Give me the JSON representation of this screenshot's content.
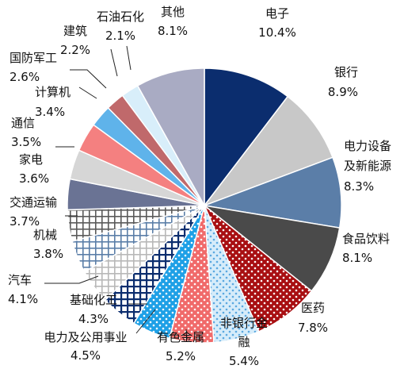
{
  "chart_data": {
    "type": "pie",
    "title": "",
    "unit": "%",
    "start": "12 o'clock",
    "direction": "clockwise",
    "legend": "none (slice labels)",
    "slices": [
      {
        "label": "电子",
        "value": 10.4,
        "value_label": "10.4%",
        "color": "#0b2d6e",
        "pattern": "solid"
      },
      {
        "label": "银行",
        "value": 8.9,
        "value_label": "8.9%",
        "color": "#c8c8c8",
        "pattern": "solid"
      },
      {
        "label": "电力设备及新能源",
        "value": 8.3,
        "value_label": "8.3%",
        "color": "#5b7ea8",
        "pattern": "solid"
      },
      {
        "label": "食品饮料",
        "value": 8.1,
        "value_label": "8.1%",
        "color": "#4a4a4a",
        "pattern": "solid"
      },
      {
        "label": "医药",
        "value": 7.8,
        "value_label": "7.8%",
        "color": "#a80f12",
        "pattern": "dots-white"
      },
      {
        "label": "非银行金融",
        "value": 5.4,
        "value_label": "5.4%",
        "color": "#d6ecfa",
        "pattern": "dots-blue"
      },
      {
        "label": "有色金属",
        "value": 5.2,
        "value_label": "5.2%",
        "color": "#f06a6a",
        "pattern": "dots-white"
      },
      {
        "label": "电力及公用事业",
        "value": 4.5,
        "value_label": "4.5%",
        "color": "#1ea0e6",
        "pattern": "dots-white"
      },
      {
        "label": "基础化工",
        "value": 4.3,
        "value_label": "4.3%",
        "color": "#0b2d6e",
        "pattern": "grid-navy"
      },
      {
        "label": "汽车",
        "value": 4.1,
        "value_label": "4.1%",
        "color": "#b8b8b8",
        "pattern": "grid-gray"
      },
      {
        "label": "机械",
        "value": 3.8,
        "value_label": "3.8%",
        "color": "#5b7ea8",
        "pattern": "grid-blue"
      },
      {
        "label": "交通运输",
        "value": 3.7,
        "value_label": "3.7%",
        "color": "#5a5a5a",
        "pattern": "grid-dark"
      },
      {
        "label": "家电",
        "value": 3.6,
        "value_label": "3.6%",
        "color": "#6a7394",
        "pattern": "solid"
      },
      {
        "label": "通信",
        "value": 3.5,
        "value_label": "3.5%",
        "color": "#d6d6d6",
        "pattern": "solid"
      },
      {
        "label": "计算机",
        "value": 3.4,
        "value_label": "3.4%",
        "color": "#f48080",
        "pattern": "solid"
      },
      {
        "label": "国防军工",
        "value": 2.6,
        "value_label": "2.6%",
        "color": "#5fb3ea",
        "pattern": "solid"
      },
      {
        "label": "建筑",
        "value": 2.2,
        "value_label": "2.2%",
        "color": "#c0696b",
        "pattern": "solid"
      },
      {
        "label": "石油石化",
        "value": 2.1,
        "value_label": "2.1%",
        "color": "#d8eefa",
        "pattern": "solid"
      },
      {
        "label": "其他",
        "value": 8.1,
        "value_label": "8.1%",
        "color": "#a9abc3",
        "pattern": "solid"
      }
    ]
  }
}
